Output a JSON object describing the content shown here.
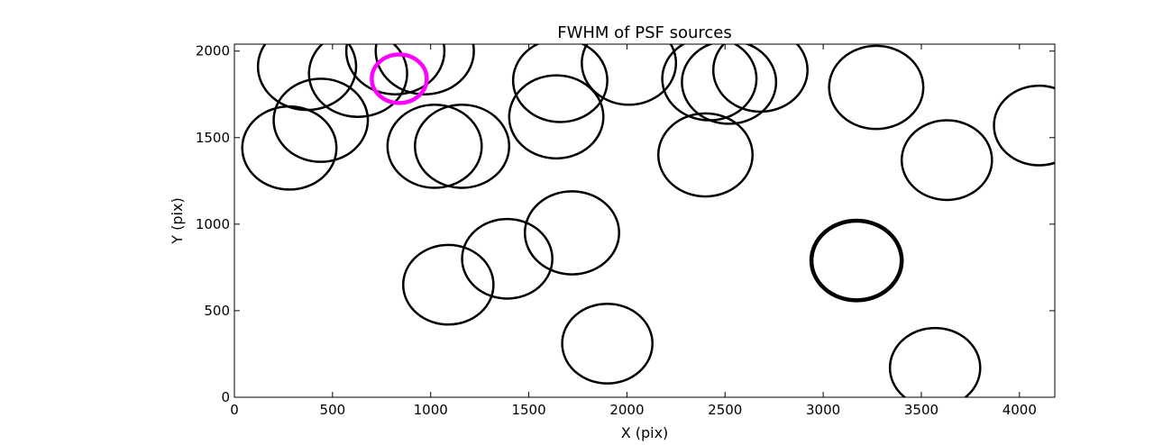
{
  "chart_data": {
    "type": "scatter",
    "title": "FWHM of PSF sources",
    "xlabel": "X (pix)",
    "ylabel": "Y (pix)",
    "xlim": [
      0,
      4180
    ],
    "ylim": [
      0,
      2040
    ],
    "xticks": [
      0,
      500,
      1000,
      1500,
      2000,
      2500,
      3000,
      3500,
      4000
    ],
    "yticks": [
      0,
      500,
      1000,
      1500,
      2000
    ],
    "grid": false,
    "marker": "open-circle",
    "colors": {
      "default": "#000000",
      "highlight": "#ff00ff"
    },
    "points": [
      {
        "x": 370,
        "y": 1910,
        "r": 250
      },
      {
        "x": 630,
        "y": 1870,
        "r": 250
      },
      {
        "x": 820,
        "y": 2000,
        "r": 250
      },
      {
        "x": 970,
        "y": 2000,
        "r": 250
      },
      {
        "x": 840,
        "y": 1840,
        "r": 140,
        "highlight": true
      },
      {
        "x": 440,
        "y": 1600,
        "r": 240
      },
      {
        "x": 280,
        "y": 1440,
        "r": 240
      },
      {
        "x": 1020,
        "y": 1450,
        "r": 240
      },
      {
        "x": 1160,
        "y": 1450,
        "r": 240
      },
      {
        "x": 1660,
        "y": 1830,
        "r": 240
      },
      {
        "x": 1640,
        "y": 1620,
        "r": 240
      },
      {
        "x": 2010,
        "y": 1930,
        "r": 240
      },
      {
        "x": 2420,
        "y": 1840,
        "r": 240
      },
      {
        "x": 2520,
        "y": 1820,
        "r": 240
      },
      {
        "x": 2680,
        "y": 1890,
        "r": 240
      },
      {
        "x": 2400,
        "y": 1400,
        "r": 240
      },
      {
        "x": 3270,
        "y": 1790,
        "r": 240
      },
      {
        "x": 3630,
        "y": 1370,
        "r": 230
      },
      {
        "x": 4100,
        "y": 1570,
        "r": 230
      },
      {
        "x": 1720,
        "y": 950,
        "r": 240
      },
      {
        "x": 1390,
        "y": 800,
        "r": 230
      },
      {
        "x": 1090,
        "y": 650,
        "r": 230
      },
      {
        "x": 1900,
        "y": 310,
        "r": 230
      },
      {
        "x": 3170,
        "y": 790,
        "r": 230,
        "bold": true
      },
      {
        "x": 3570,
        "y": 170,
        "r": 230
      }
    ]
  }
}
